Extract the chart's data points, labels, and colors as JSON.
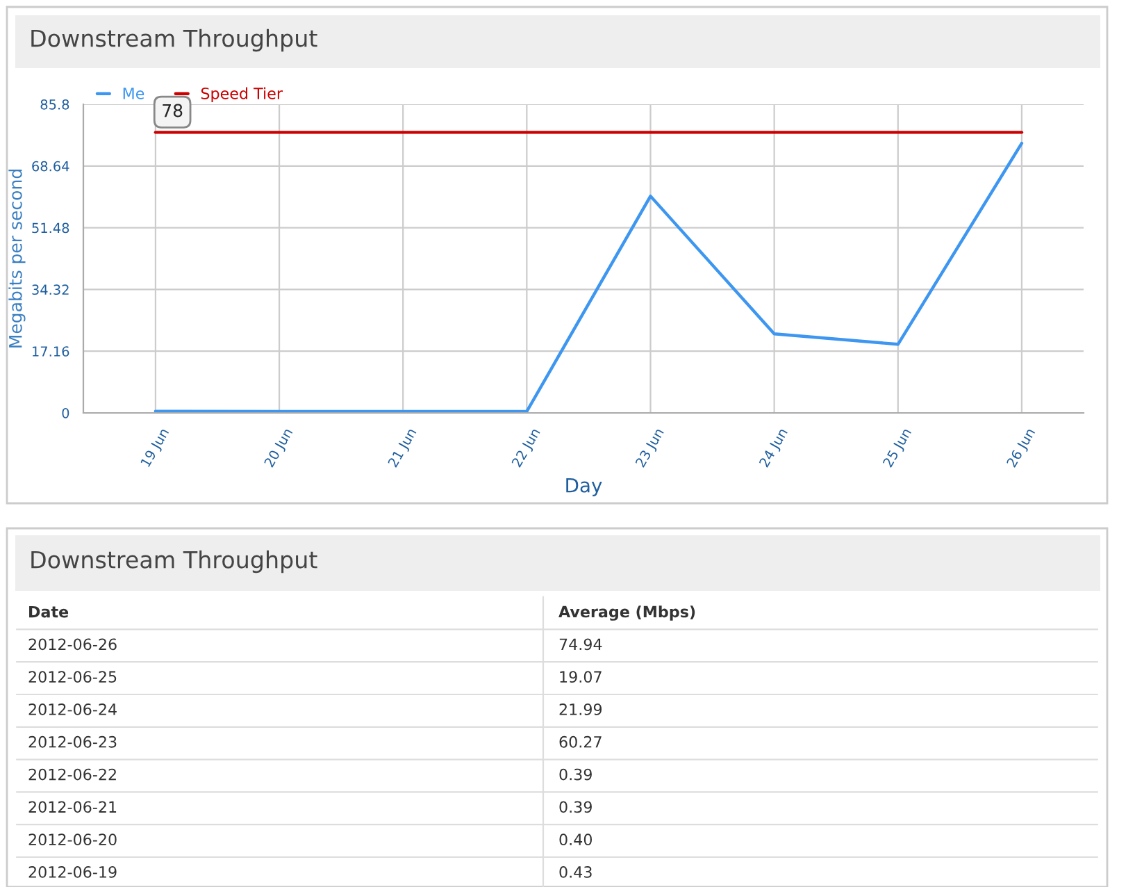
{
  "chart_data": [
    {
      "type": "line",
      "title": "Downstream Throughput",
      "xlabel": "Day",
      "ylabel": "Megabits per second",
      "x": [
        "2012-06-19",
        "2012-06-20",
        "2012-06-21",
        "2012-06-22",
        "2012-06-23",
        "2012-06-24",
        "2012-06-25",
        "2012-06-26"
      ],
      "xlim": [
        "2012-06-18T10:00",
        "2012-06-26T12:00"
      ],
      "xticks": [
        {
          "value": "2012-06-19",
          "label": "19 Jun"
        },
        {
          "value": "2012-06-20",
          "label": "20 Jun"
        },
        {
          "value": "2012-06-21",
          "label": "21 Jun"
        },
        {
          "value": "2012-06-22",
          "label": "22 Jun"
        },
        {
          "value": "2012-06-23",
          "label": "23 Jun"
        },
        {
          "value": "2012-06-24",
          "label": "24 Jun"
        },
        {
          "value": "2012-06-25",
          "label": "25 Jun"
        },
        {
          "value": "2012-06-26",
          "label": "26 Jun"
        }
      ],
      "ylim": [
        0,
        85.8
      ],
      "yticks": [
        0,
        17.16,
        34.32,
        51.48,
        68.64,
        85.8
      ],
      "series": [
        {
          "name": "Me",
          "color": "#3d96f0",
          "values": [
            0.43,
            0.4,
            0.39,
            0.39,
            60.27,
            21.99,
            19.07,
            74.94
          ]
        },
        {
          "name": "Speed Tier",
          "color": "#cc0000",
          "values": [
            78,
            78,
            78,
            78,
            78,
            78,
            78,
            78
          ]
        }
      ],
      "grid": true,
      "legend": "top left",
      "marker": "none",
      "line_style": "solid",
      "annotations": [
        {
          "text": "78",
          "x": "2012-06-19",
          "y": 78
        }
      ]
    },
    {
      "type": "other",
      "title": "Downstream Throughput",
      "annotations": [
        "Date",
        "Average (Mbps)",
        "2012-06-26",
        "74.94",
        "2012-06-25",
        "19.07",
        "2012-06-24",
        "21.99",
        "2012-06-23",
        "60.27",
        "2012-06-22",
        "0.39",
        "2012-06-21",
        "0.39",
        "2012-06-20",
        "0.40",
        "2012-06-19",
        "0.43"
      ]
    }
  ]
}
